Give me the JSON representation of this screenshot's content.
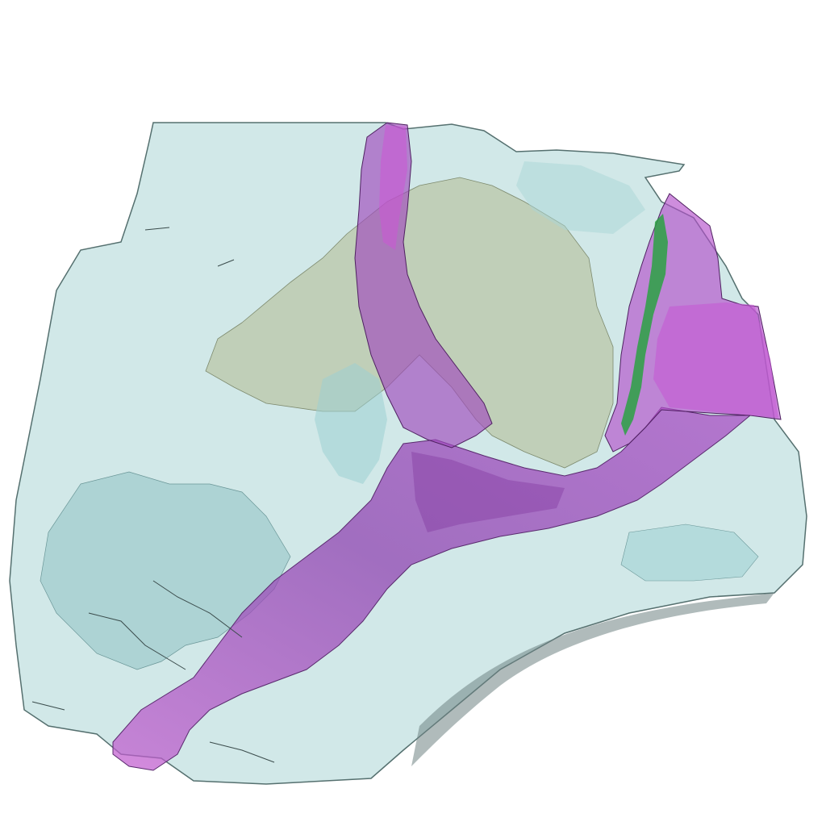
{
  "scene": {
    "background": "#ffffff",
    "structures": [
      {
        "name": "outer-volume",
        "color": "#c9e4e4",
        "opacity": 0.85
      },
      {
        "name": "inner-cavities",
        "color": "#9ccfd1",
        "opacity": 0.55
      },
      {
        "name": "olive-mass",
        "color": "#b9c4a4",
        "opacity": 0.7
      },
      {
        "name": "vessel-network",
        "color": "#8a2fa8",
        "opacity": 0.6
      },
      {
        "name": "vessel-highlight",
        "color": "#cc55d6",
        "opacity": 0.55
      },
      {
        "name": "green-strand",
        "color": "#22a23a",
        "opacity": 0.8
      }
    ]
  }
}
